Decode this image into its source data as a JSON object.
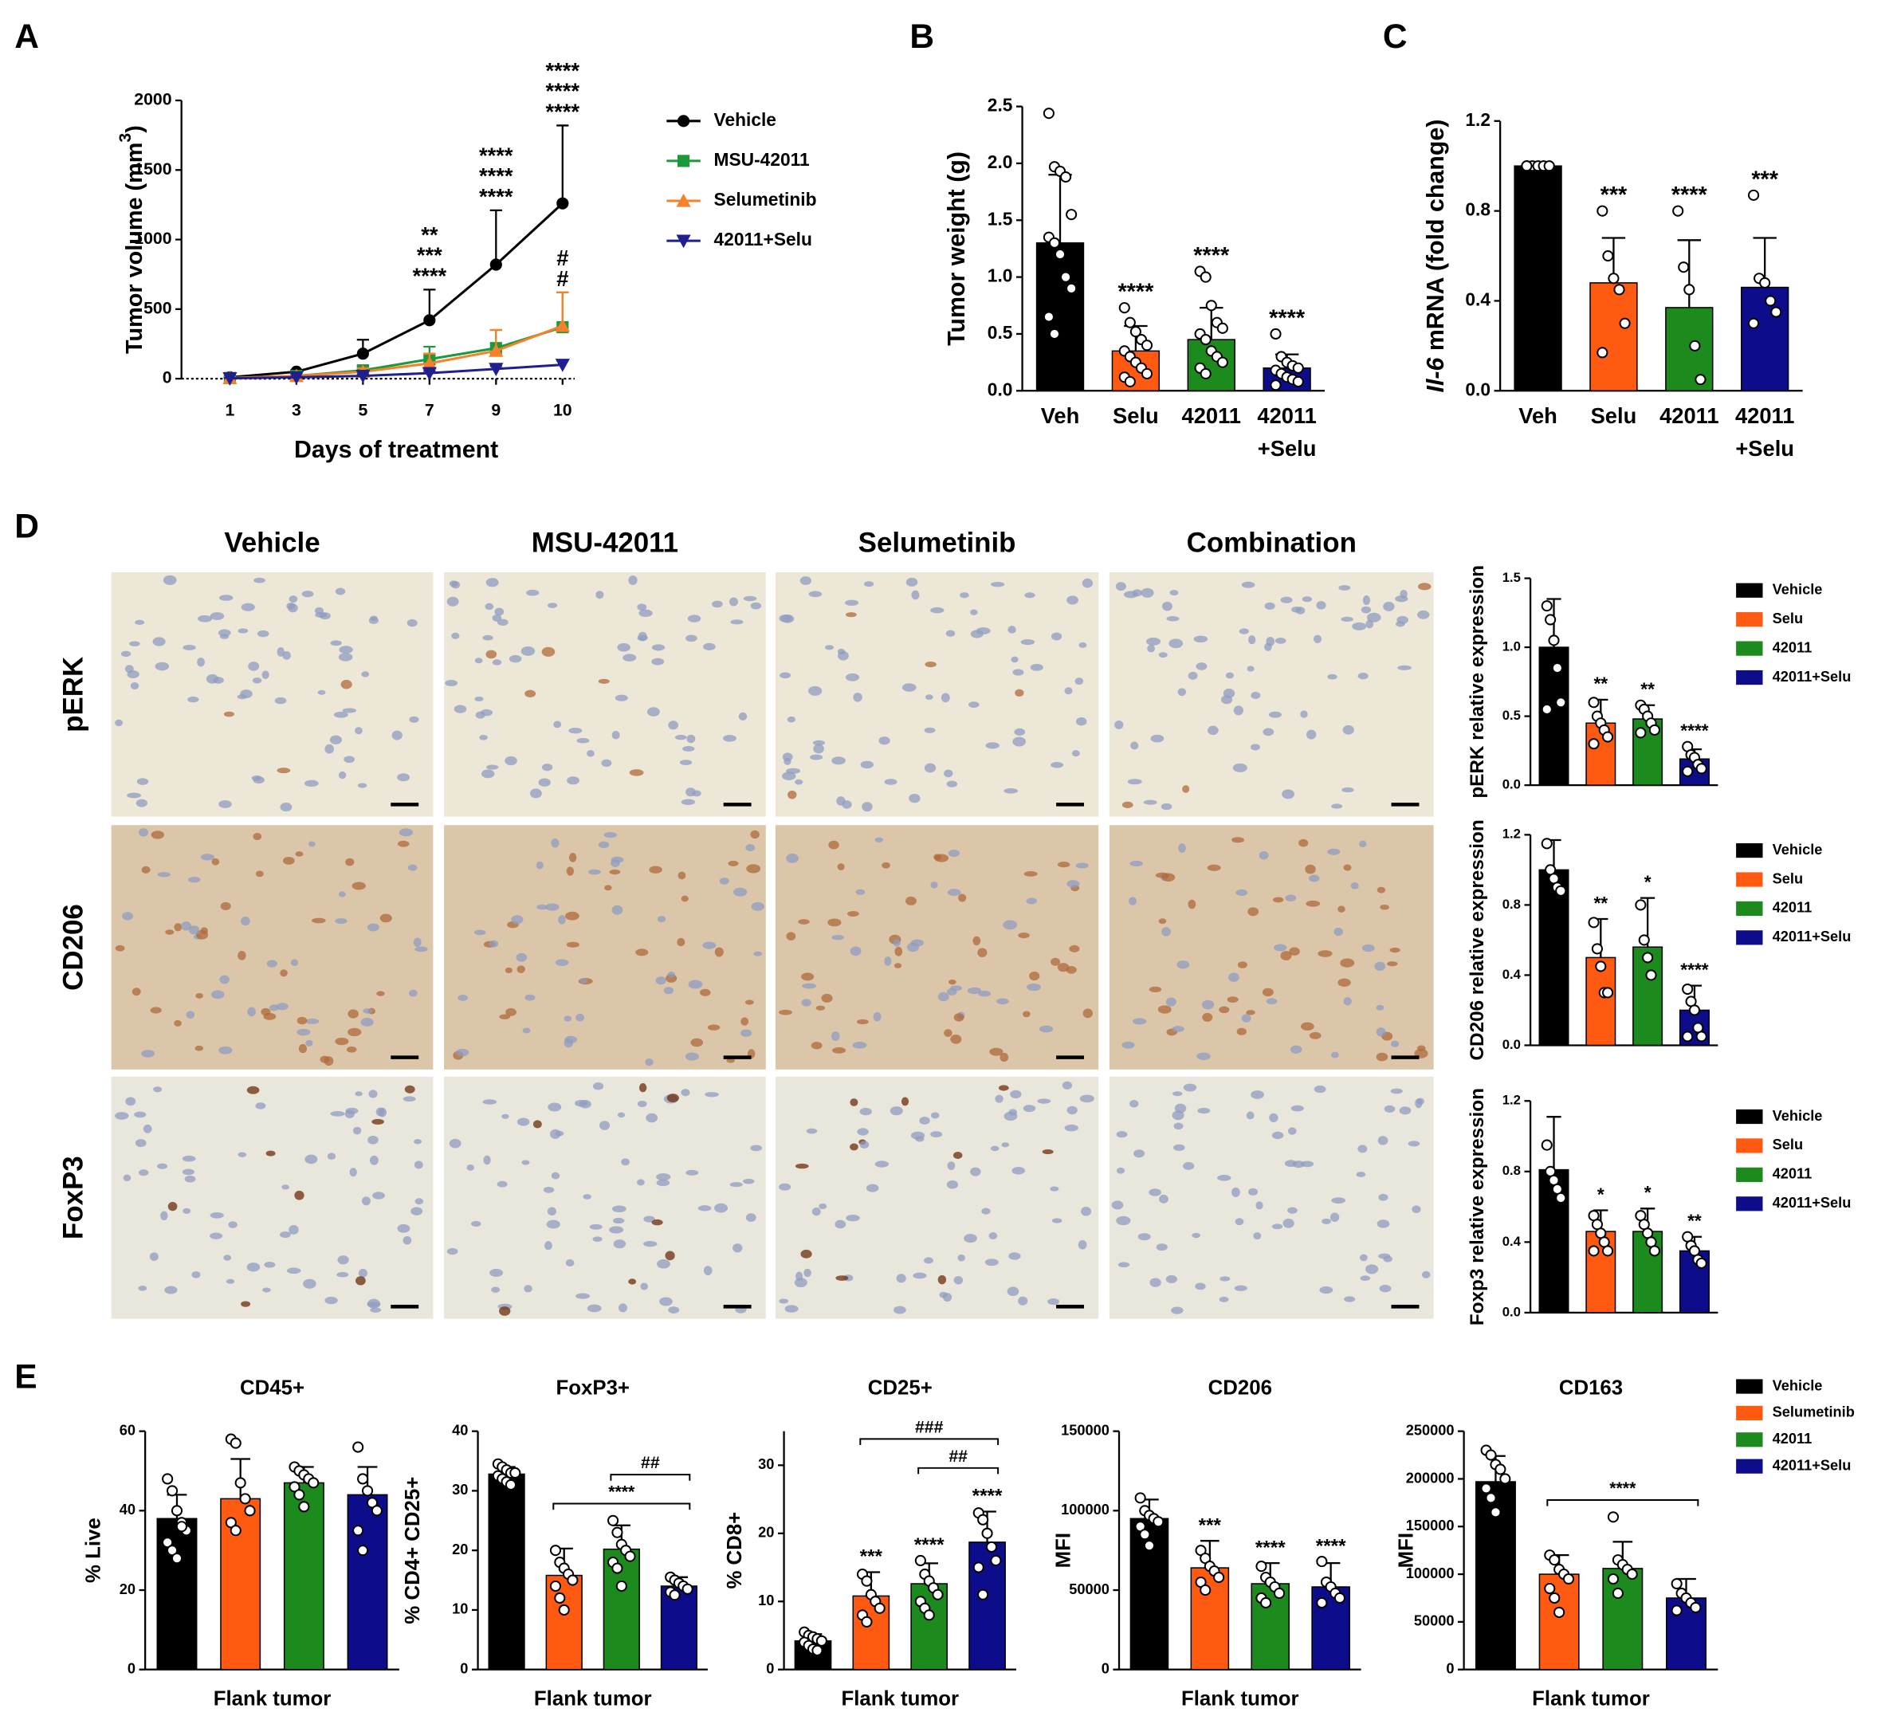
{
  "panel_labels": [
    "A",
    "B",
    "C",
    "D",
    "E"
  ],
  "micrographs": {
    "columns": [
      "Vehicle",
      "MSU-42011",
      "Selumetinib",
      "Combination"
    ],
    "rows": [
      "pERK",
      "CD206",
      "FoxP3"
    ]
  },
  "chart_data": [
    {
      "type": "line",
      "ylabel": [
        "Tumor volume (mm",
        "3",
        ")"
      ],
      "xlabel": "Days of treatment",
      "categories": [
        "1",
        "3",
        "5",
        "7",
        "9",
        "10"
      ],
      "ylim": [
        0,
        2000
      ],
      "yticks": [
        0,
        500,
        1000,
        1500,
        2000
      ],
      "series": [
        {
          "name": "Vehicle",
          "color": "#000000",
          "marker": "circle",
          "values": [
            10,
            50,
            180,
            420,
            820,
            1260
          ],
          "errors": [
            5,
            10,
            100,
            220,
            390,
            560
          ]
        },
        {
          "name": "MSU-42011",
          "color": "#1a9a3a",
          "marker": "square",
          "values": [
            5,
            20,
            60,
            140,
            220,
            370
          ],
          "errors": [
            3,
            8,
            30,
            90,
            130,
            250
          ]
        },
        {
          "name": "Selumetinib",
          "color": "#f5822a",
          "marker": "triangle",
          "values": [
            5,
            20,
            50,
            110,
            200,
            380
          ],
          "errors": [
            3,
            8,
            25,
            70,
            150,
            240
          ]
        },
        {
          "name": "42011+Selu",
          "color": "#1f1f8f",
          "marker": "triangle-down",
          "values": [
            3,
            10,
            20,
            40,
            70,
            100
          ],
          "errors": [
            2,
            5,
            8,
            15,
            20,
            30
          ]
        }
      ],
      "annotations": [
        {
          "x": "7",
          "series": 0,
          "labels": [
            {
              "text": "**",
              "color": "#1a9a3a"
            },
            {
              "text": "***",
              "color": "#f5822a"
            },
            {
              "text": "****",
              "color": "#1f1f8f"
            }
          ]
        },
        {
          "x": "9",
          "series": 0,
          "labels": [
            {
              "text": "****",
              "color": "#1a9a3a"
            },
            {
              "text": "****",
              "color": "#f5822a"
            },
            {
              "text": "****",
              "color": "#1f1f8f"
            }
          ]
        },
        {
          "x": "10",
          "series": 0,
          "labels": [
            {
              "text": "****",
              "color": "#1a9a3a"
            },
            {
              "text": "****",
              "color": "#f5822a"
            },
            {
              "text": "****",
              "color": "#1f1f8f"
            }
          ]
        },
        {
          "x": "10",
          "series": 1,
          "labels": [
            {
              "text": "#",
              "color": "#1a9a3a"
            },
            {
              "text": "#",
              "color": "#f5822a"
            }
          ]
        }
      ]
    },
    {
      "type": "bar",
      "ylabel": [
        "Tumor weight (g)"
      ],
      "categories": [
        [
          "Veh"
        ],
        [
          "Selu"
        ],
        [
          "42011"
        ],
        [
          "42011",
          "+Selu"
        ]
      ],
      "category_colors": [
        [
          "#000000"
        ],
        [
          "#ff5a12"
        ],
        [
          "#1c8a1c"
        ],
        [
          "#1c8a1c",
          "#ff5a12"
        ]
      ],
      "colors": [
        "#000000",
        "#ff5a12",
        "#1c8a1c",
        "#0d0d8c"
      ],
      "values": [
        1.3,
        0.35,
        0.45,
        0.2
      ],
      "errors": [
        0.6,
        0.22,
        0.28,
        0.12
      ],
      "points": [
        [
          2.44,
          1.97,
          1.93,
          1.88,
          1.55,
          1.35,
          1.3,
          1.2,
          1.0,
          0.9,
          0.65,
          0.5
        ],
        [
          0.73,
          0.6,
          0.52,
          0.45,
          0.4,
          0.35,
          0.3,
          0.25,
          0.2,
          0.15,
          0.12,
          0.08
        ],
        [
          1.05,
          1.0,
          0.75,
          0.6,
          0.55,
          0.5,
          0.45,
          0.35,
          0.3,
          0.25,
          0.2,
          0.15
        ],
        [
          0.5,
          0.3,
          0.25,
          0.22,
          0.2,
          0.18,
          0.15,
          0.12,
          0.1,
          0.08,
          0.05
        ]
      ],
      "sig_labels": [
        null,
        "****",
        "****",
        "****"
      ],
      "ylim": [
        0,
        2.5
      ],
      "yticks": [
        {
          "value": 0,
          "label": "0.0"
        },
        0.5,
        {
          "value": 1,
          "label": "1.0"
        },
        1.5,
        {
          "value": 2,
          "label": "2.0"
        },
        2.5
      ]
    },
    {
      "type": "bar",
      "ylabel": [
        "Il-6",
        " mRNA (fold change)"
      ],
      "categories": [
        [
          "Veh"
        ],
        [
          "Selu"
        ],
        [
          "42011"
        ],
        [
          "42011",
          "+Selu"
        ]
      ],
      "category_colors": [
        [
          "#000000"
        ],
        [
          "#ff5a12"
        ],
        [
          "#1c8a1c"
        ],
        [
          "#1c8a1c",
          "#ff5a12"
        ]
      ],
      "colors": [
        "#000000",
        "#ff5a12",
        "#1c8a1c",
        "#0d0d8c"
      ],
      "values": [
        1.0,
        0.48,
        0.37,
        0.46
      ],
      "errors": [
        0.01,
        0.2,
        0.3,
        0.22
      ],
      "points": [
        [
          1.0,
          1.0,
          1.0,
          1.0,
          1.0,
          1.0
        ],
        [
          0.8,
          0.6,
          0.5,
          0.45,
          0.3,
          0.17
        ],
        [
          0.8,
          0.55,
          0.45,
          0.2,
          0.05
        ],
        [
          0.87,
          0.5,
          0.48,
          0.4,
          0.35,
          0.3
        ]
      ],
      "sig_labels": [
        null,
        "***",
        "****",
        "***"
      ],
      "ylim": [
        0,
        1.2
      ],
      "yticks": [
        {
          "value": 0,
          "label": "0.0"
        },
        0.4,
        0.8,
        1.2
      ]
    },
    {
      "type": "bar",
      "ylabel": [
        "pERK relative expression"
      ],
      "legend": true,
      "categories": [
        "Vehicle",
        "Selu",
        "42011",
        "42011+Selu"
      ],
      "colors": [
        "#000000",
        "#ff5a12",
        "#1c8a1c",
        "#0d0d8c"
      ],
      "values": [
        1.0,
        0.45,
        0.48,
        0.19
      ],
      "errors": [
        0.35,
        0.17,
        0.1,
        0.07
      ],
      "points": [
        [
          1.3,
          1.2,
          1.05,
          0.85,
          0.6,
          0.55
        ],
        [
          0.6,
          0.5,
          0.45,
          0.4,
          0.35,
          0.3
        ],
        [
          0.58,
          0.55,
          0.5,
          0.45,
          0.4,
          0.38
        ],
        [
          0.28,
          0.22,
          0.2,
          0.15,
          0.12,
          0.1
        ]
      ],
      "sig_labels": [
        null,
        "**",
        "**",
        "****"
      ],
      "ylim": [
        0,
        1.5
      ],
      "yticks": [
        {
          "value": 0,
          "label": "0.0"
        },
        0.5,
        {
          "value": 1,
          "label": "1.0"
        },
        1.5
      ]
    },
    {
      "type": "bar",
      "ylabel": [
        "CD206 relative expression"
      ],
      "legend": true,
      "categories": [
        "Vehicle",
        "Selu",
        "42011",
        "42011+Selu"
      ],
      "colors": [
        "#000000",
        "#ff5a12",
        "#1c8a1c",
        "#0d0d8c"
      ],
      "values": [
        1.0,
        0.5,
        0.56,
        0.2
      ],
      "errors": [
        0.17,
        0.22,
        0.28,
        0.14
      ],
      "points": [
        [
          1.15,
          1.0,
          0.95,
          0.9,
          0.88
        ],
        [
          0.7,
          0.55,
          0.45,
          0.3,
          0.3
        ],
        [
          0.8,
          0.6,
          0.5,
          0.4
        ],
        [
          0.32,
          0.25,
          0.2,
          0.1,
          0.05,
          0.05
        ]
      ],
      "sig_labels": [
        null,
        "**",
        "*",
        "****"
      ],
      "ylim": [
        0,
        1.2
      ],
      "yticks": [
        {
          "value": 0,
          "label": "0.0"
        },
        0.4,
        0.8,
        1.2
      ]
    },
    {
      "type": "bar",
      "ylabel": [
        "Foxp3 relative expression"
      ],
      "legend": true,
      "categories": [
        "Vehicle",
        "Selu",
        "42011",
        "42011+Selu"
      ],
      "colors": [
        "#000000",
        "#ff5a12",
        "#1c8a1c",
        "#0d0d8c"
      ],
      "values": [
        0.81,
        0.46,
        0.46,
        0.35
      ],
      "errors": [
        0.3,
        0.12,
        0.13,
        0.08
      ],
      "points": [
        [
          0.95,
          0.8,
          0.75,
          0.7,
          0.65
        ],
        [
          0.55,
          0.5,
          0.45,
          0.4,
          0.35,
          0.35
        ],
        [
          0.55,
          0.5,
          0.45,
          0.4,
          0.35
        ],
        [
          0.43,
          0.38,
          0.35,
          0.3,
          0.28
        ]
      ],
      "sig_labels": [
        null,
        "*",
        "*",
        "**"
      ],
      "ylim": [
        0,
        1.2
      ],
      "yticks": [
        {
          "value": 0,
          "label": "0.0"
        },
        0.4,
        0.8,
        1.2
      ]
    },
    {
      "type": "bar",
      "title": "CD45+",
      "ylabel": [
        "% Live"
      ],
      "xlabel": "Flank tumor",
      "colors": [
        "#000000",
        "#ff5a12",
        "#1c8a1c",
        "#0d0d8c"
      ],
      "values": [
        38,
        43,
        47,
        44
      ],
      "errors": [
        6,
        10,
        4,
        7
      ],
      "points": [
        [
          48,
          45,
          40,
          37,
          35,
          32,
          30,
          28,
          36
        ],
        [
          58,
          57,
          47,
          43,
          40,
          37,
          35
        ],
        [
          51,
          50,
          49,
          48,
          47,
          46,
          44,
          41
        ],
        [
          56,
          48,
          45,
          42,
          40,
          35,
          30
        ]
      ],
      "ylim": [
        0,
        60
      ],
      "yticks": [
        0,
        20,
        40,
        60
      ]
    },
    {
      "type": "bar",
      "title": "FoxP3+",
      "ylabel": [
        "% CD4+ CD25+"
      ],
      "xlabel": "Flank tumor",
      "colors": [
        "#000000",
        "#ff5a12",
        "#1c8a1c",
        "#0d0d8c"
      ],
      "values": [
        32.8,
        15.8,
        20.2,
        14
      ],
      "errors": [
        1.2,
        4.5,
        4,
        1.5
      ],
      "points": [
        [
          34.5,
          34,
          33.5,
          33,
          33,
          32.5,
          32,
          31.5,
          31
        ],
        [
          20,
          18,
          17,
          16,
          15,
          14,
          12,
          10
        ],
        [
          25,
          23,
          21,
          20,
          19,
          18,
          17,
          14
        ],
        [
          15.5,
          15,
          14.5,
          14,
          13.5,
          13,
          12.5
        ]
      ],
      "brackets": [
        {
          "from": 1,
          "to": 3,
          "label": "****"
        },
        {
          "from": 2,
          "to": 3,
          "label": "##"
        }
      ],
      "ylim": [
        0,
        40
      ],
      "yticks": [
        0,
        10,
        20,
        30,
        40
      ]
    },
    {
      "type": "bar",
      "title": "CD25+",
      "ylabel": [
        "% CD8+"
      ],
      "xlabel": "Flank tumor",
      "colors": [
        "#000000",
        "#ff5a12",
        "#1c8a1c",
        "#0d0d8c"
      ],
      "values": [
        4.2,
        10.8,
        12.6,
        18.7
      ],
      "errors": [
        1,
        3.5,
        3,
        4.5
      ],
      "points": [
        [
          5.5,
          5,
          4.8,
          4.5,
          4.2,
          4,
          3.5,
          3,
          2.8
        ],
        [
          14,
          13,
          11,
          10,
          9,
          8,
          7
        ],
        [
          16,
          14,
          13,
          12,
          11,
          10,
          9,
          8
        ],
        [
          23,
          22,
          20,
          18,
          16,
          15,
          11
        ]
      ],
      "sig_labels": [
        null,
        "***",
        "****",
        "****"
      ],
      "brackets": [
        {
          "from": 2,
          "to": 3,
          "label": "##"
        },
        {
          "from": 1,
          "to": 3,
          "label": "###"
        }
      ],
      "ylim": [
        0,
        35
      ],
      "yticks": [
        0,
        10,
        20,
        30
      ]
    },
    {
      "type": "bar",
      "title": "CD206",
      "ylabel": [
        "MFI"
      ],
      "xlabel": "Flank tumor",
      "colors": [
        "#000000",
        "#ff5a12",
        "#1c8a1c",
        "#0d0d8c"
      ],
      "values": [
        95000,
        64000,
        54000,
        52000
      ],
      "errors": [
        12000,
        17000,
        13000,
        15000
      ],
      "points": [
        [
          108000,
          100000,
          97000,
          95000,
          93000,
          90000,
          85000,
          78000
        ],
        [
          75000,
          70000,
          65000,
          62000,
          58000,
          55000,
          50000
        ],
        [
          65000,
          58000,
          55000,
          52000,
          48000,
          45000,
          42000
        ],
        [
          68000,
          55000,
          52000,
          48000,
          45000,
          42000
        ]
      ],
      "sig_labels": [
        null,
        "***",
        "****",
        "****"
      ],
      "ylim": [
        0,
        150000
      ],
      "yticks": [
        0,
        50000,
        100000,
        150000
      ]
    },
    {
      "type": "bar",
      "title": "CD163",
      "ylabel": [
        "MFI"
      ],
      "xlabel": "Flank tumor",
      "legend": true,
      "categories": [
        "Vehicle",
        "Selumetinib",
        "42011",
        "42011+Selu"
      ],
      "colors": [
        "#000000",
        "#ff5a12",
        "#1c8a1c",
        "#0d0d8c"
      ],
      "values": [
        197000,
        100000,
        106000,
        75000
      ],
      "errors": [
        27000,
        20000,
        28000,
        20000
      ],
      "points": [
        [
          230000,
          225000,
          215000,
          210000,
          200000,
          190000,
          180000,
          165000
        ],
        [
          120000,
          115000,
          105000,
          100000,
          95000,
          85000,
          75000,
          60000
        ],
        [
          160000,
          115000,
          110000,
          105000,
          100000,
          95000,
          80000
        ],
        [
          90000,
          80000,
          75000,
          70000,
          65000,
          62000
        ]
      ],
      "brackets": [
        {
          "from": 1,
          "to": 3,
          "label": "****"
        }
      ],
      "ylim": [
        0,
        250000
      ],
      "yticks": [
        0,
        50000,
        100000,
        150000,
        200000,
        250000
      ]
    }
  ]
}
